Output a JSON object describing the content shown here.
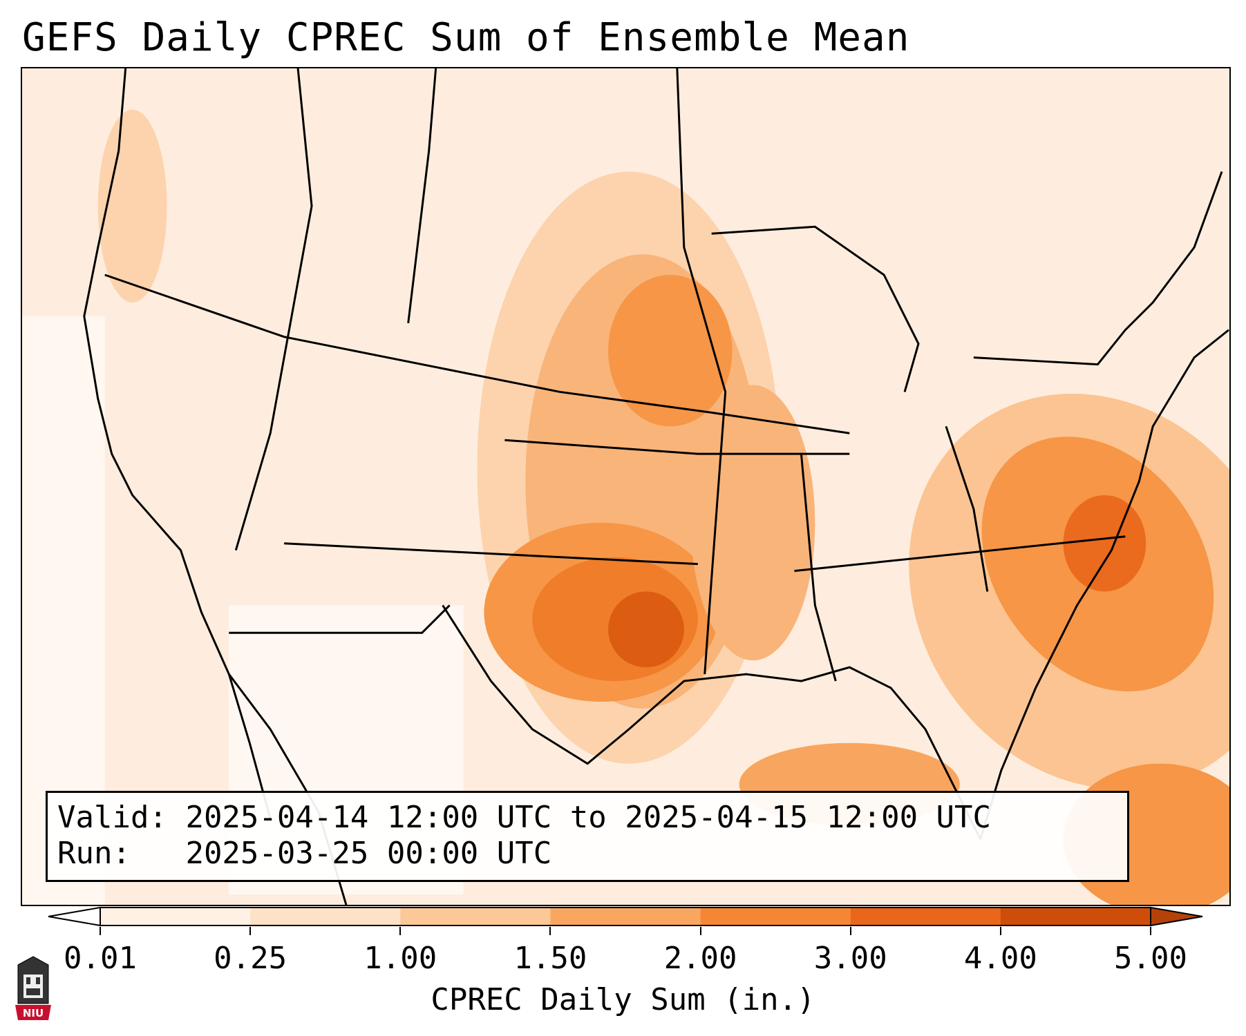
{
  "title": "GEFS Daily CPREC Sum of Ensemble Mean",
  "info": {
    "valid_label": "Valid:",
    "valid_range": "2025-04-14 12:00 UTC to 2025-04-15 12:00 UTC",
    "run_label": "Run:",
    "run_time": "2025-03-25 00:00 UTC"
  },
  "colorbar": {
    "label": "CPREC Daily Sum (in.)",
    "ticks": [
      "0.01",
      "0.25",
      "1.00",
      "1.50",
      "2.00",
      "3.00",
      "4.00",
      "5.00"
    ],
    "colors": [
      "#fff1e4",
      "#fde2c8",
      "#fcc898",
      "#f9a760",
      "#f58734",
      "#e9661b",
      "#cf4d0a"
    ],
    "extend": "both"
  },
  "logo": {
    "text": "NIU"
  }
}
